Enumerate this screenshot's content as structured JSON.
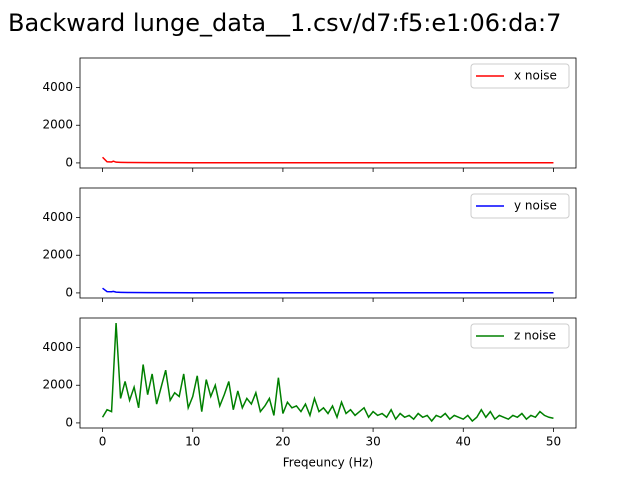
{
  "title": "Backward lunge_data__1.csv/d7:f5:e1:06:da:7",
  "chart_data": [
    {
      "type": "line",
      "x": [
        0,
        0.5,
        1,
        1.2,
        1.5,
        2,
        3,
        5,
        10,
        20,
        30,
        40,
        50
      ],
      "series": [
        {
          "name": "x noise",
          "color": "#ff0000",
          "values": [
            300,
            60,
            50,
            90,
            40,
            30,
            20,
            15,
            10,
            10,
            10,
            10,
            10
          ]
        }
      ],
      "xlim": [
        -2.5,
        52.5
      ],
      "xticks": [
        0,
        10,
        20,
        30,
        40,
        50
      ],
      "ylim": [
        -270,
        5570
      ],
      "yticks": [
        0,
        2000,
        4000
      ],
      "legend": "upper right"
    },
    {
      "type": "line",
      "x": [
        0,
        0.5,
        1,
        1.2,
        1.5,
        2,
        3,
        5,
        10,
        20,
        30,
        40,
        50
      ],
      "series": [
        {
          "name": "y noise",
          "color": "#0000ff",
          "values": [
            250,
            70,
            60,
            80,
            40,
            30,
            20,
            15,
            10,
            10,
            10,
            10,
            10
          ]
        }
      ],
      "xlim": [
        -2.5,
        52.5
      ],
      "xticks": [
        0,
        10,
        20,
        30,
        40,
        50
      ],
      "ylim": [
        -270,
        5570
      ],
      "yticks": [
        0,
        2000,
        4000
      ],
      "legend": "upper right"
    },
    {
      "type": "line",
      "xlabel": "Freqeuncy (Hz)",
      "x": [
        0,
        0.5,
        1,
        1.5,
        2,
        2.5,
        3,
        3.5,
        4,
        4.5,
        5,
        5.5,
        6,
        6.5,
        7,
        7.5,
        8,
        8.5,
        9,
        9.5,
        10,
        10.5,
        11,
        11.5,
        12,
        12.5,
        13,
        13.5,
        14,
        14.5,
        15,
        15.5,
        16,
        16.5,
        17,
        17.5,
        18,
        18.5,
        19,
        19.5,
        20,
        20.5,
        21,
        21.5,
        22,
        22.5,
        23,
        23.5,
        24,
        24.5,
        25,
        25.5,
        26,
        26.5,
        27,
        27.5,
        28,
        28.5,
        29,
        29.5,
        30,
        30.5,
        31,
        31.5,
        32,
        32.5,
        33,
        33.5,
        34,
        34.5,
        35,
        35.5,
        36,
        36.5,
        37,
        37.5,
        38,
        38.5,
        39,
        39.5,
        40,
        40.5,
        41,
        41.5,
        42,
        42.5,
        43,
        43.5,
        44,
        44.5,
        45,
        45.5,
        46,
        46.5,
        47,
        47.5,
        48,
        48.5,
        49,
        49.5,
        50
      ],
      "series": [
        {
          "name": "z noise",
          "color": "#008000",
          "values": [
            300,
            700,
            600,
            5300,
            1300,
            2200,
            1200,
            1900,
            800,
            3100,
            1500,
            2600,
            1000,
            1900,
            2800,
            1200,
            1600,
            1400,
            2600,
            800,
            1400,
            2500,
            600,
            2300,
            1400,
            2000,
            900,
            1500,
            2200,
            700,
            1700,
            800,
            1300,
            1000,
            1600,
            600,
            900,
            1300,
            400,
            2400,
            500,
            1100,
            800,
            900,
            600,
            1000,
            400,
            1300,
            600,
            800,
            500,
            900,
            300,
            1100,
            500,
            700,
            400,
            600,
            800,
            300,
            600,
            400,
            500,
            300,
            700,
            200,
            500,
            300,
            400,
            200,
            500,
            300,
            400,
            100,
            400,
            300,
            500,
            200,
            400,
            300,
            200,
            400,
            100,
            300,
            700,
            300,
            600,
            200,
            400,
            300,
            200,
            400,
            300,
            500,
            200,
            400,
            300,
            600,
            400,
            300,
            250
          ]
        }
      ],
      "xlim": [
        -2.5,
        52.5
      ],
      "xticks": [
        0,
        10,
        20,
        30,
        40,
        50
      ],
      "ylim": [
        -270,
        5570
      ],
      "yticks": [
        0,
        2000,
        4000
      ],
      "legend": "upper right"
    }
  ]
}
